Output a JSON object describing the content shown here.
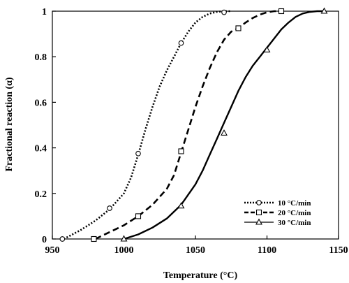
{
  "chart_data": {
    "type": "line",
    "xlabel": "Temperature (°C)",
    "ylabel": "Fractional reaction (α)",
    "xlim": [
      950,
      1150
    ],
    "ylim": [
      0,
      1
    ],
    "xticks": [
      950,
      1000,
      1050,
      1100,
      1150
    ],
    "xtick_labels": [
      "950",
      "1000",
      "1050",
      "1100",
      "1150"
    ],
    "yticks": [
      0,
      0.2,
      0.4,
      0.6,
      0.8,
      1
    ],
    "ytick_labels": [
      "0",
      "0.2",
      "0.4",
      "0.6",
      "0.8",
      "1"
    ],
    "grid": false,
    "legend_position": "bottom-right",
    "series": [
      {
        "name": "10 °C/min",
        "line_style": "dotted",
        "marker": "circle",
        "color": "#000000",
        "x": [
          958,
          970,
          980,
          990,
          1000,
          1005,
          1010,
          1015,
          1020,
          1025,
          1030,
          1035,
          1040,
          1045,
          1050,
          1055,
          1060,
          1065,
          1070,
          1075
        ],
        "y": [
          0.0,
          0.04,
          0.08,
          0.13,
          0.2,
          0.27,
          0.37,
          0.48,
          0.58,
          0.67,
          0.74,
          0.8,
          0.86,
          0.91,
          0.95,
          0.975,
          0.99,
          0.997,
          1.0,
          1.0
        ],
        "markers_x": [
          957,
          990,
          1010,
          1040,
          1070
        ],
        "markers_y": [
          0.0,
          0.135,
          0.375,
          0.86,
          0.995
        ]
      },
      {
        "name": "20 °C/min",
        "line_style": "dashed",
        "marker": "square",
        "color": "#000000",
        "x": [
          980,
          990,
          1000,
          1010,
          1020,
          1030,
          1035,
          1040,
          1045,
          1050,
          1055,
          1060,
          1065,
          1070,
          1075,
          1080,
          1085,
          1090,
          1095,
          1100,
          1105,
          1110
        ],
        "y": [
          0.0,
          0.03,
          0.06,
          0.1,
          0.15,
          0.22,
          0.28,
          0.38,
          0.48,
          0.58,
          0.67,
          0.75,
          0.82,
          0.875,
          0.91,
          0.925,
          0.95,
          0.97,
          0.985,
          0.995,
          1.0,
          1.0
        ],
        "markers_x": [
          979,
          1010,
          1040,
          1080,
          1110
        ],
        "markers_y": [
          0.0,
          0.1,
          0.385,
          0.925,
          1.0
        ]
      },
      {
        "name": "30 °C/min",
        "line_style": "solid",
        "marker": "triangle",
        "color": "#000000",
        "x": [
          1000,
          1010,
          1020,
          1030,
          1040,
          1050,
          1055,
          1060,
          1065,
          1070,
          1075,
          1080,
          1085,
          1090,
          1095,
          1100,
          1105,
          1110,
          1115,
          1120,
          1125,
          1130,
          1135,
          1140
        ],
        "y": [
          0.0,
          0.02,
          0.05,
          0.09,
          0.15,
          0.24,
          0.3,
          0.37,
          0.44,
          0.51,
          0.58,
          0.65,
          0.71,
          0.76,
          0.8,
          0.84,
          0.88,
          0.92,
          0.95,
          0.975,
          0.99,
          0.997,
          1.0,
          1.0
        ],
        "markers_x": [
          1000,
          1040,
          1070,
          1100,
          1140
        ],
        "markers_y": [
          0.0,
          0.145,
          0.465,
          0.83,
          1.0
        ]
      }
    ]
  }
}
